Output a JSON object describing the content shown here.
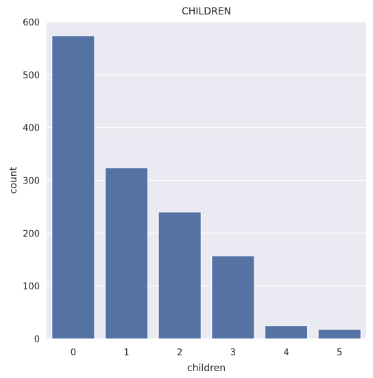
{
  "chart_data": {
    "type": "bar",
    "title": "CHILDREN",
    "xlabel": "children",
    "ylabel": "count",
    "categories": [
      "0",
      "1",
      "2",
      "3",
      "4",
      "5"
    ],
    "values": [
      574,
      324,
      240,
      157,
      25,
      18
    ],
    "ylim": [
      0,
      600
    ],
    "yticks": [
      "0",
      "100",
      "200",
      "300",
      "400",
      "500",
      "600"
    ],
    "grid": true,
    "bar_color": "#5572a4",
    "plot_background": "#eaeaf2"
  }
}
